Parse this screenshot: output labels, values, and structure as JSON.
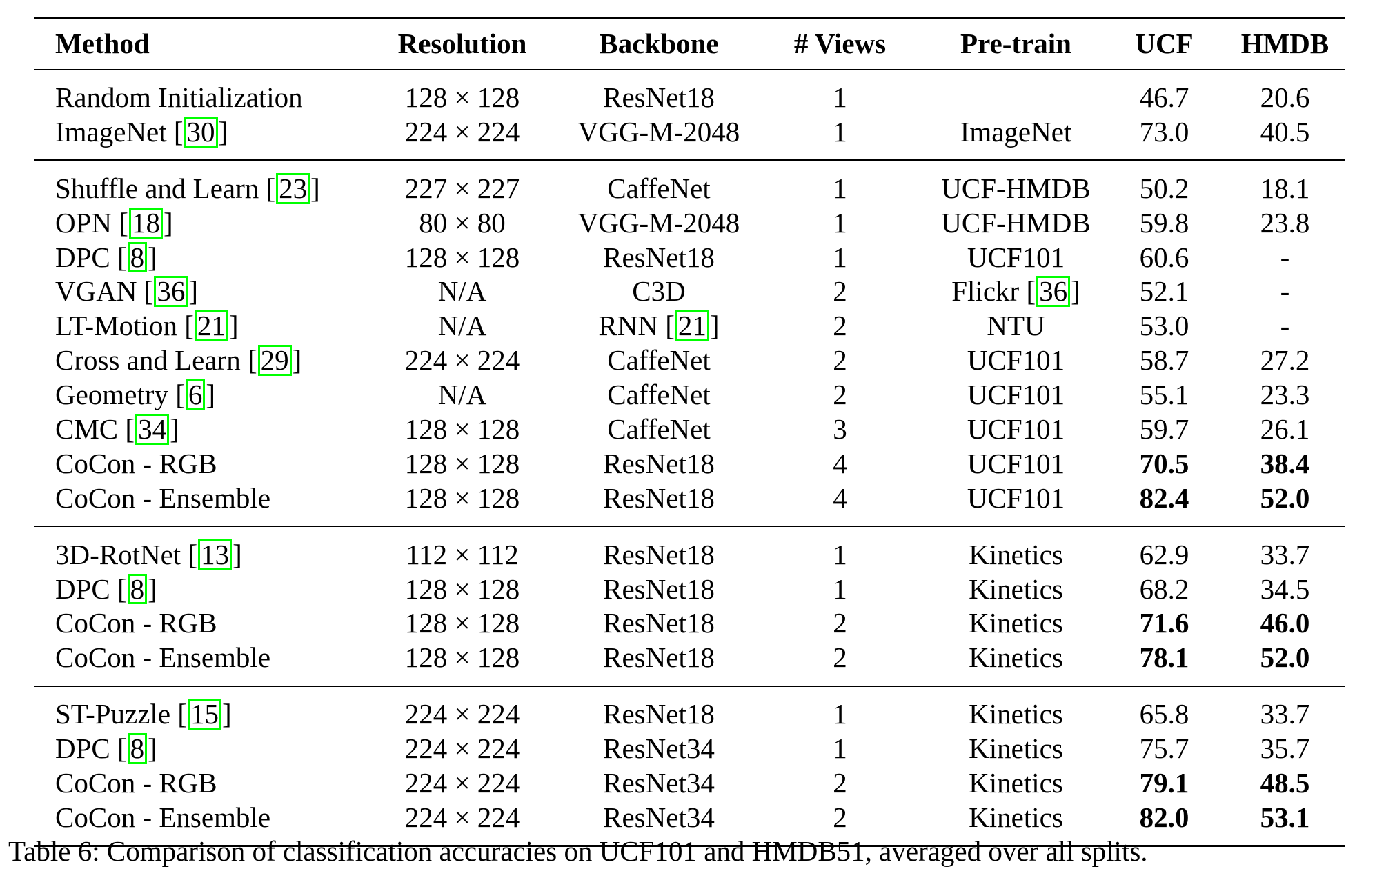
{
  "table": {
    "headers": {
      "method": "Method",
      "resolution": "Resolution",
      "backbone": "Backbone",
      "views": "# Views",
      "pretrain": "Pre-train",
      "ucf": "UCF",
      "hmdb": "HMDB"
    },
    "groups": [
      {
        "rows": [
          {
            "method": "Random Initialization",
            "cite": "",
            "resolution": "128 × 128",
            "backbone": "ResNet18",
            "backbone_cite": "",
            "views": "1",
            "pretrain": "",
            "pretrain_cite": "",
            "ucf": "46.7",
            "hmdb": "20.6",
            "bold": false
          },
          {
            "method": "ImageNet",
            "cite": "30",
            "resolution": "224 × 224",
            "backbone": "VGG-M-2048",
            "backbone_cite": "",
            "views": "1",
            "pretrain": "ImageNet",
            "pretrain_cite": "",
            "ucf": "73.0",
            "hmdb": "40.5",
            "bold": false
          }
        ]
      },
      {
        "rows": [
          {
            "method": "Shuffle and Learn",
            "cite": "23",
            "resolution": "227 × 227",
            "backbone": "CaffeNet",
            "backbone_cite": "",
            "views": "1",
            "pretrain": "UCF-HMDB",
            "pretrain_cite": "",
            "ucf": "50.2",
            "hmdb": "18.1",
            "bold": false
          },
          {
            "method": "OPN",
            "cite": "18",
            "resolution": "80 × 80",
            "backbone": "VGG-M-2048",
            "backbone_cite": "",
            "views": "1",
            "pretrain": "UCF-HMDB",
            "pretrain_cite": "",
            "ucf": "59.8",
            "hmdb": "23.8",
            "bold": false
          },
          {
            "method": "DPC",
            "cite": "8",
            "resolution": "128 × 128",
            "backbone": "ResNet18",
            "backbone_cite": "",
            "views": "1",
            "pretrain": "UCF101",
            "pretrain_cite": "",
            "ucf": "60.6",
            "hmdb": "-",
            "bold": false
          },
          {
            "method": "VGAN",
            "cite": "36",
            "resolution": "N/A",
            "backbone": "C3D",
            "backbone_cite": "",
            "views": "2",
            "pretrain": "Flickr",
            "pretrain_cite": "36",
            "ucf": "52.1",
            "hmdb": "-",
            "bold": false
          },
          {
            "method": "LT-Motion",
            "cite": "21",
            "resolution": "N/A",
            "backbone": "RNN",
            "backbone_cite": "21",
            "views": "2",
            "pretrain": "NTU",
            "pretrain_cite": "",
            "ucf": "53.0",
            "hmdb": "-",
            "bold": false
          },
          {
            "method": "Cross and Learn",
            "cite": "29",
            "resolution": "224 × 224",
            "backbone": "CaffeNet",
            "backbone_cite": "",
            "views": "2",
            "pretrain": "UCF101",
            "pretrain_cite": "",
            "ucf": "58.7",
            "hmdb": "27.2",
            "bold": false
          },
          {
            "method": "Geometry",
            "cite": "6",
            "resolution": "N/A",
            "backbone": "CaffeNet",
            "backbone_cite": "",
            "views": "2",
            "pretrain": "UCF101",
            "pretrain_cite": "",
            "ucf": "55.1",
            "hmdb": "23.3",
            "bold": false
          },
          {
            "method": "CMC",
            "cite": "34",
            "resolution": "128 × 128",
            "backbone": "CaffeNet",
            "backbone_cite": "",
            "views": "3",
            "pretrain": "UCF101",
            "pretrain_cite": "",
            "ucf": "59.7",
            "hmdb": "26.1",
            "bold": false
          },
          {
            "method": "CoCon - RGB",
            "cite": "",
            "resolution": "128 × 128",
            "backbone": "ResNet18",
            "backbone_cite": "",
            "views": "4",
            "pretrain": "UCF101",
            "pretrain_cite": "",
            "ucf": "70.5",
            "hmdb": "38.4",
            "bold": true
          },
          {
            "method": "CoCon - Ensemble",
            "cite": "",
            "resolution": "128 × 128",
            "backbone": "ResNet18",
            "backbone_cite": "",
            "views": "4",
            "pretrain": "UCF101",
            "pretrain_cite": "",
            "ucf": "82.4",
            "hmdb": "52.0",
            "bold": true
          }
        ]
      },
      {
        "rows": [
          {
            "method": "3D-RotNet",
            "cite": "13",
            "resolution": "112 × 112",
            "backbone": "ResNet18",
            "backbone_cite": "",
            "views": "1",
            "pretrain": "Kinetics",
            "pretrain_cite": "",
            "ucf": "62.9",
            "hmdb": "33.7",
            "bold": false
          },
          {
            "method": "DPC",
            "cite": "8",
            "resolution": "128 × 128",
            "backbone": "ResNet18",
            "backbone_cite": "",
            "views": "1",
            "pretrain": "Kinetics",
            "pretrain_cite": "",
            "ucf": "68.2",
            "hmdb": "34.5",
            "bold": false
          },
          {
            "method": "CoCon - RGB",
            "cite": "",
            "resolution": "128 × 128",
            "backbone": "ResNet18",
            "backbone_cite": "",
            "views": "2",
            "pretrain": "Kinetics",
            "pretrain_cite": "",
            "ucf": "71.6",
            "hmdb": "46.0",
            "bold": true
          },
          {
            "method": "CoCon - Ensemble",
            "cite": "",
            "resolution": "128 × 128",
            "backbone": "ResNet18",
            "backbone_cite": "",
            "views": "2",
            "pretrain": "Kinetics",
            "pretrain_cite": "",
            "ucf": "78.1",
            "hmdb": "52.0",
            "bold": true
          }
        ]
      },
      {
        "rows": [
          {
            "method": "ST-Puzzle",
            "cite": "15",
            "resolution": "224 × 224",
            "backbone": "ResNet18",
            "backbone_cite": "",
            "views": "1",
            "pretrain": "Kinetics",
            "pretrain_cite": "",
            "ucf": "65.8",
            "hmdb": "33.7",
            "bold": false
          },
          {
            "method": "DPC",
            "cite": "8",
            "resolution": "224 × 224",
            "backbone": "ResNet34",
            "backbone_cite": "",
            "views": "1",
            "pretrain": "Kinetics",
            "pretrain_cite": "",
            "ucf": "75.7",
            "hmdb": "35.7",
            "bold": false
          },
          {
            "method": "CoCon - RGB",
            "cite": "",
            "resolution": "224 × 224",
            "backbone": "ResNet34",
            "backbone_cite": "",
            "views": "2",
            "pretrain": "Kinetics",
            "pretrain_cite": "",
            "ucf": "79.1",
            "hmdb": "48.5",
            "bold": true
          },
          {
            "method": "CoCon - Ensemble",
            "cite": "",
            "resolution": "224 × 224",
            "backbone": "ResNet34",
            "backbone_cite": "",
            "views": "2",
            "pretrain": "Kinetics",
            "pretrain_cite": "",
            "ucf": "82.0",
            "hmdb": "53.1",
            "bold": true
          }
        ]
      }
    ]
  },
  "caption": "Table 6: Comparison of classification accuracies on UCF101 and HMDB51, averaged over all splits."
}
